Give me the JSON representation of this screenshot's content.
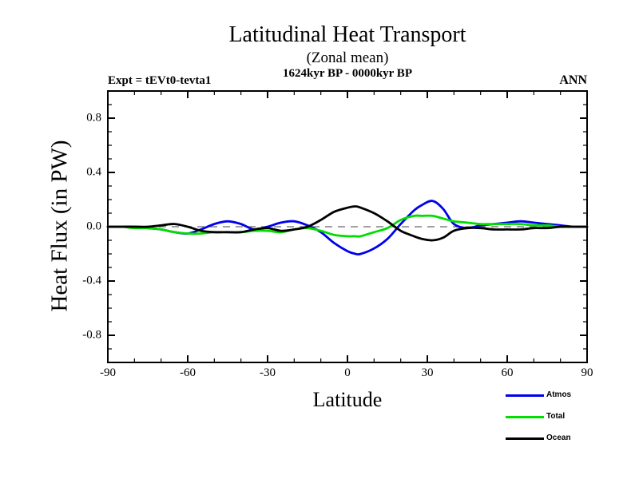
{
  "header": {
    "title": "Latitudinal Heat Transport",
    "subtitle": "(Zonal mean)",
    "period": "1624kyr BP - 0000kyr BP",
    "expt_label": "Expt = tEVt0-tevta1",
    "season_label": "ANN"
  },
  "axes": {
    "xlabel": "Latitude",
    "ylabel": "Heat Flux (in PW)",
    "x_tick_labels": [
      "-90",
      "-60",
      "-30",
      "0",
      "30",
      "60",
      "90"
    ],
    "y_tick_labels": [
      "0.8",
      "0.4",
      "0.0",
      "-0.4",
      "-0.8"
    ]
  },
  "legend": {
    "items": [
      {
        "label": "Atmos",
        "color": "#0000ee"
      },
      {
        "label": "Total",
        "color": "#00dd00"
      },
      {
        "label": "Ocean",
        "color": "#000000"
      }
    ]
  },
  "chart_data": {
    "type": "line",
    "title": "Latitudinal Heat Transport",
    "subtitle": "(Zonal mean)",
    "annotation_left": "Expt = tEVt0-tevta1",
    "annotation_right": "ANN",
    "xlabel": "Latitude",
    "ylabel": "Heat Flux (in PW)",
    "xlim": [
      -90,
      90
    ],
    "ylim": [
      -1.0,
      1.0
    ],
    "x_major_ticks": [
      -90,
      -60,
      -30,
      0,
      30,
      60,
      90
    ],
    "x_minor_step": 10,
    "y_major_ticks": [
      0.8,
      0.4,
      0.0,
      -0.4,
      -0.8
    ],
    "y_minor_step": 0.1,
    "grid": false,
    "zero_line": {
      "value": 0.0,
      "style": "dashed",
      "color": "#808080"
    },
    "legend_position": "bottom-right",
    "x": [
      -90,
      -85,
      -80,
      -75,
      -70,
      -65,
      -60,
      -55,
      -50,
      -45,
      -40,
      -35,
      -30,
      -25,
      -20,
      -15,
      -10,
      -5,
      0,
      3,
      5,
      10,
      15,
      20,
      25,
      28,
      32,
      36,
      40,
      45,
      50,
      55,
      60,
      65,
      70,
      75,
      80,
      85,
      90
    ],
    "series": [
      {
        "name": "Atmos",
        "color": "#0000ee",
        "values": [
          0,
          0,
          0,
          -0.01,
          -0.02,
          -0.04,
          -0.05,
          -0.02,
          0.02,
          0.04,
          0.02,
          -0.02,
          0,
          0.03,
          0.04,
          0.01,
          -0.04,
          -0.12,
          -0.18,
          -0.2,
          -0.2,
          -0.16,
          -0.09,
          0.02,
          0.12,
          0.16,
          0.19,
          0.13,
          0.02,
          -0.01,
          0.01,
          0.02,
          0.03,
          0.04,
          0.03,
          0.02,
          0.01,
          0,
          0
        ]
      },
      {
        "name": "Total",
        "color": "#00dd00",
        "values": [
          0,
          0,
          -0.01,
          -0.01,
          -0.02,
          -0.04,
          -0.05,
          -0.05,
          -0.04,
          -0.04,
          -0.04,
          -0.03,
          -0.03,
          -0.04,
          -0.02,
          -0.01,
          -0.03,
          -0.06,
          -0.07,
          -0.07,
          -0.07,
          -0.04,
          -0.01,
          0.05,
          0.08,
          0.08,
          0.08,
          0.06,
          0.04,
          0.03,
          0.02,
          0.02,
          0.02,
          0.02,
          0.01,
          0.01,
          0,
          0,
          0
        ]
      },
      {
        "name": "Ocean",
        "color": "#000000",
        "values": [
          0,
          0,
          0,
          0,
          0.01,
          0.02,
          0,
          -0.03,
          -0.04,
          -0.04,
          -0.04,
          -0.02,
          -0.01,
          -0.03,
          -0.02,
          0,
          0.05,
          0.11,
          0.14,
          0.15,
          0.14,
          0.1,
          0.04,
          -0.03,
          -0.07,
          -0.09,
          -0.1,
          -0.08,
          -0.03,
          -0.01,
          -0.01,
          -0.02,
          -0.02,
          -0.02,
          -0.01,
          -0.01,
          0,
          0,
          0
        ]
      }
    ]
  }
}
